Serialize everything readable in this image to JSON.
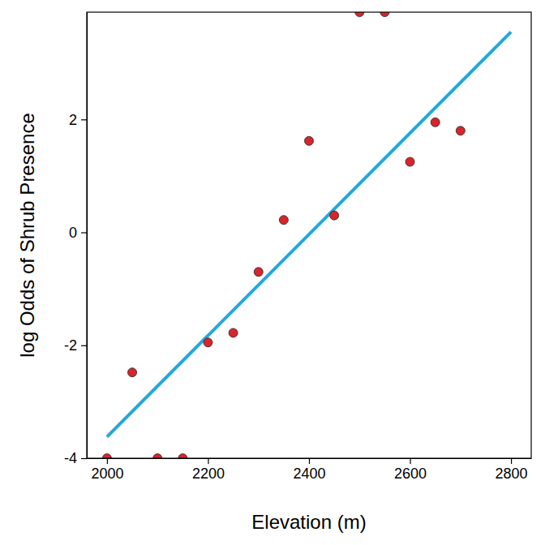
{
  "chart_data": {
    "type": "scatter",
    "x_label": "Elevation (m)",
    "y_label": "log Odds of Shrub Presence",
    "x": [
      2000,
      2050,
      2100,
      2150,
      2200,
      2250,
      2300,
      2350,
      2400,
      2450,
      2500,
      2550,
      2600,
      2650,
      2700
    ],
    "values": [
      -4,
      -2.48,
      -4,
      -4,
      -1.95,
      -1.78,
      -0.7,
      0.22,
      1.62,
      0.3,
      3.9,
      3.9,
      1.25,
      1.95,
      1.8
    ],
    "color": "#d7262b",
    "marker": "circle",
    "fit": {
      "type": "line",
      "x": [
        2000,
        2800
      ],
      "values": [
        -3.62,
        3.55
      ],
      "color": "#22a8dc",
      "line_style": "solid"
    },
    "xlim": [
      1960,
      2840
    ],
    "ylim": [
      -4,
      3.9
    ],
    "xticks": [
      2000,
      2200,
      2400,
      2600,
      2800
    ],
    "yticks": [
      -4,
      -2,
      0,
      2
    ],
    "grid": false
  }
}
